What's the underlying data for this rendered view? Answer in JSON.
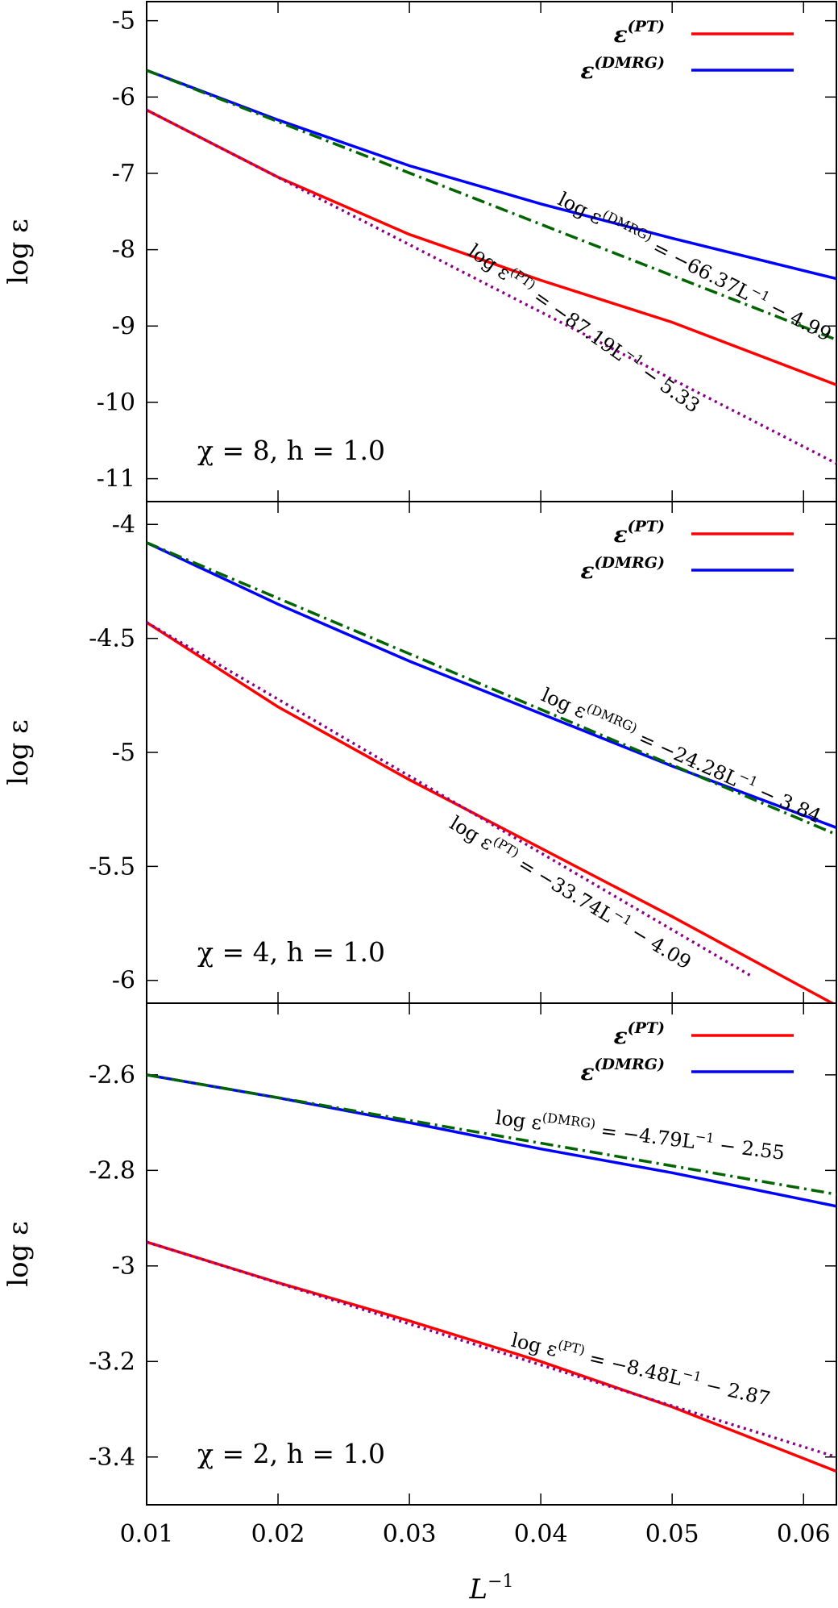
{
  "chart_data": [
    {
      "type": "line",
      "panel_label": "χ = 8,  h = 1.0",
      "ylabel": "log ε",
      "xlim": [
        0.01,
        0.0625
      ],
      "ylim": [
        -11.3,
        -4.75
      ],
      "xticks": [
        0.01,
        0.02,
        0.03,
        0.04,
        0.05,
        0.06
      ],
      "yticks": [
        -5,
        -6,
        -7,
        -8,
        -9,
        -10,
        -11
      ],
      "ytick_labels": [
        "-5",
        "-6",
        "-7",
        "-8",
        "-9",
        "-10",
        "-11"
      ],
      "legend": [
        {
          "base": "ε",
          "sup": "(PT)",
          "color": "#ff0000"
        },
        {
          "base": "ε",
          "sup": "(DMRG)",
          "color": "#0000ff"
        }
      ],
      "series": [
        {
          "name": "ε(PT)",
          "color": "#ff0000",
          "style": "solid",
          "x": [
            0.01,
            0.02,
            0.03,
            0.04,
            0.05,
            0.0625
          ],
          "y": [
            -6.17,
            -7.05,
            -7.8,
            -8.4,
            -8.95,
            -9.77
          ]
        },
        {
          "name": "ε(DMRG)",
          "color": "#0000ff",
          "style": "solid",
          "x": [
            0.01,
            0.02,
            0.03,
            0.04,
            0.05,
            0.0625
          ],
          "y": [
            -5.65,
            -6.3,
            -6.9,
            -7.4,
            -7.85,
            -8.38
          ]
        },
        {
          "name": "fit DMRG",
          "color": "#006400",
          "style": "dashdot",
          "x": [
            0.01,
            0.0625
          ],
          "y": [
            -5.65,
            -9.18
          ]
        },
        {
          "name": "fit PT",
          "color": "#8b008b",
          "style": "dotted",
          "x": [
            0.01,
            0.0625
          ],
          "y": [
            -6.17,
            -10.8
          ]
        }
      ],
      "annotations": [
        {
          "text_pre": "log ε",
          "sup": "(DMRG)",
          "text_post": " = −66.37L",
          "exp": "−1",
          "text_tail": " − 4.99",
          "x": 0.0515,
          "y": -8.3,
          "angle": 27
        },
        {
          "text_pre": "log ε",
          "sup": "(PT)",
          "text_post": " = −87.19L",
          "exp": "−1",
          "text_tail": " − 5.33",
          "x": 0.043,
          "y": -9.1,
          "angle": 35
        }
      ]
    },
    {
      "type": "line",
      "panel_label": "χ = 4,  h = 1.0",
      "ylabel": "log ε",
      "xlim": [
        0.01,
        0.0625
      ],
      "ylim": [
        -6.1,
        -3.9
      ],
      "xticks": [
        0.01,
        0.02,
        0.03,
        0.04,
        0.05,
        0.06
      ],
      "yticks": [
        -4,
        -4.5,
        -5,
        -5.5,
        -6
      ],
      "ytick_labels": [
        "-4",
        "-4.5",
        "-5",
        "-5.5",
        "-6"
      ],
      "legend": [
        {
          "base": "ε",
          "sup": "(PT)",
          "color": "#ff0000"
        },
        {
          "base": "ε",
          "sup": "(DMRG)",
          "color": "#0000ff"
        }
      ],
      "series": [
        {
          "name": "ε(PT)",
          "color": "#ff0000",
          "style": "solid",
          "x": [
            0.01,
            0.02,
            0.03,
            0.04,
            0.05,
            0.0625
          ],
          "y": [
            -4.43,
            -4.8,
            -5.12,
            -5.42,
            -5.72,
            -6.11
          ]
        },
        {
          "name": "ε(DMRG)",
          "color": "#0000ff",
          "style": "solid",
          "x": [
            0.01,
            0.02,
            0.03,
            0.04,
            0.05,
            0.0625
          ],
          "y": [
            -4.08,
            -4.35,
            -4.6,
            -4.83,
            -5.06,
            -5.33
          ]
        },
        {
          "name": "fit DMRG",
          "color": "#006400",
          "style": "dashdot",
          "x": [
            0.01,
            0.0625
          ],
          "y": [
            -4.08,
            -5.36
          ]
        },
        {
          "name": "fit PT",
          "color": "#8b008b",
          "style": "dotted",
          "x": [
            0.01,
            0.056
          ],
          "y": [
            -4.43,
            -5.98
          ]
        }
      ],
      "annotations": [
        {
          "text_pre": "log ε",
          "sup": "(DMRG)",
          "text_post": " = −24.28L",
          "exp": "−1",
          "text_tail": " − 3.84",
          "x": 0.0505,
          "y": -5.04,
          "angle": 24
        },
        {
          "text_pre": "log ε",
          "sup": "(PT)",
          "text_post": " = −33.74L",
          "exp": "−1",
          "text_tail": " − 4.09",
          "x": 0.042,
          "y": -5.64,
          "angle": 31
        }
      ]
    },
    {
      "type": "line",
      "panel_label": "χ = 2,  h = 1.0",
      "ylabel": "log ε",
      "xlim": [
        0.01,
        0.0625
      ],
      "ylim": [
        -3.5,
        -2.45
      ],
      "xticks": [
        0.01,
        0.02,
        0.03,
        0.04,
        0.05,
        0.06
      ],
      "xtick_labels": [
        "0.01",
        "0.02",
        "0.03",
        "0.04",
        "0.05",
        "0.06"
      ],
      "yticks": [
        -2.6,
        -2.8,
        -3,
        -3.2,
        -3.4
      ],
      "ytick_labels": [
        "-2.6",
        "-2.8",
        "-3",
        "-3.2",
        "-3.4"
      ],
      "xlabel": "L",
      "xlabel_exp": "−1",
      "legend": [
        {
          "base": "ε",
          "sup": "(PT)",
          "color": "#ff0000"
        },
        {
          "base": "ε",
          "sup": "(DMRG)",
          "color": "#0000ff"
        }
      ],
      "series": [
        {
          "name": "ε(PT)",
          "color": "#ff0000",
          "style": "solid",
          "x": [
            0.01,
            0.02,
            0.03,
            0.04,
            0.05,
            0.0625
          ],
          "y": [
            -2.95,
            -3.035,
            -3.115,
            -3.2,
            -3.295,
            -3.43
          ]
        },
        {
          "name": "ε(DMRG)",
          "color": "#0000ff",
          "style": "solid",
          "x": [
            0.01,
            0.02,
            0.03,
            0.04,
            0.05,
            0.0625
          ],
          "y": [
            -2.6,
            -2.648,
            -2.7,
            -2.755,
            -2.805,
            -2.875
          ]
        },
        {
          "name": "fit DMRG",
          "color": "#006400",
          "style": "dashdot",
          "x": [
            0.01,
            0.0625
          ],
          "y": [
            -2.6,
            -2.85
          ]
        },
        {
          "name": "fit PT",
          "color": "#8b008b",
          "style": "dotted",
          "x": [
            0.01,
            0.0625
          ],
          "y": [
            -2.95,
            -3.4
          ]
        }
      ],
      "annotations": [
        {
          "text_pre": "log ε",
          "sup": "(DMRG)",
          "text_post": " = −4.79L",
          "exp": "−1",
          "text_tail": " − 2.55",
          "x": 0.0475,
          "y": -2.74,
          "angle": 7
        },
        {
          "text_pre": "log ε",
          "sup": "(PT)",
          "text_post": " = −8.48L",
          "exp": "−1",
          "text_tail": " − 2.87",
          "x": 0.0475,
          "y": -3.23,
          "angle": 13
        }
      ]
    }
  ]
}
